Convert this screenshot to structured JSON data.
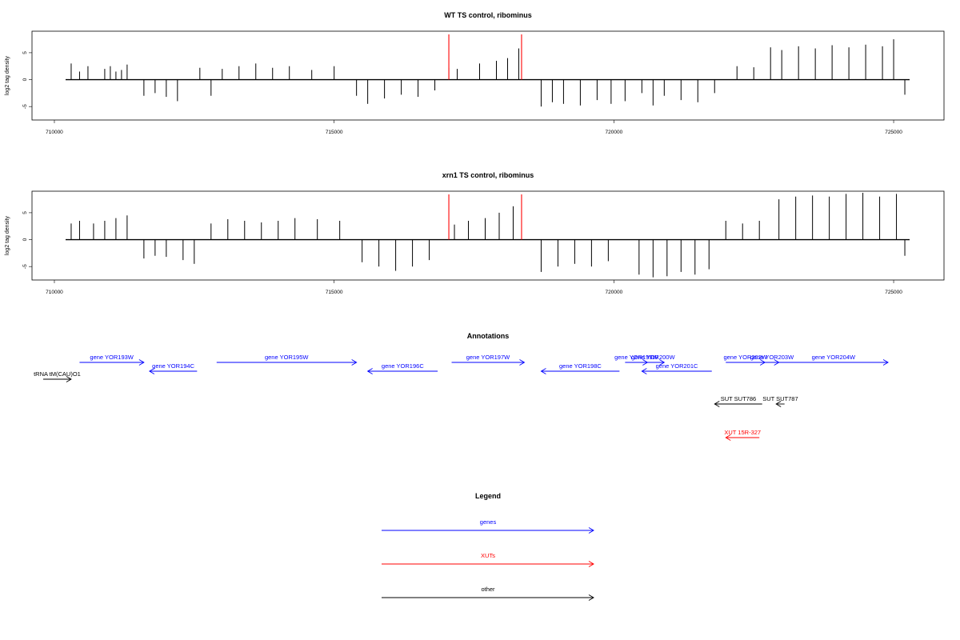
{
  "chart_data": [
    {
      "type": "bar",
      "title": "WT TS control, ribominus",
      "ylabel": "log2 tag density",
      "xlabel": "",
      "xlim": [
        709600,
        725900
      ],
      "ylim": [
        -7.5,
        9
      ],
      "xticks": [
        710000,
        715000,
        720000,
        725000
      ],
      "yticks": [
        -5,
        0,
        5
      ],
      "series": [
        {
          "values": [
            [
              710300,
              3
            ],
            [
              710450,
              1.5
            ],
            [
              710600,
              2.5
            ],
            [
              710900,
              2
            ],
            [
              711000,
              2.5
            ],
            [
              711100,
              1.5
            ],
            [
              711200,
              1.8
            ],
            [
              711300,
              2.8
            ],
            [
              711600,
              -3
            ],
            [
              711800,
              -2.5
            ],
            [
              712000,
              -3.2
            ],
            [
              712200,
              -4
            ],
            [
              712600,
              2.2
            ],
            [
              712800,
              -3
            ],
            [
              713000,
              2
            ],
            [
              713300,
              2.5
            ],
            [
              713600,
              3
            ],
            [
              713900,
              2.2
            ],
            [
              714200,
              2.5
            ],
            [
              714600,
              1.8
            ],
            [
              715000,
              2.5
            ],
            [
              715400,
              -3
            ],
            [
              715600,
              -4.5
            ],
            [
              715900,
              -3.5
            ],
            [
              716200,
              -2.8
            ],
            [
              716500,
              -3.2
            ],
            [
              716800,
              -2
            ],
            [
              717050,
              2.2
            ],
            [
              717200,
              2
            ],
            [
              717600,
              3
            ],
            [
              717900,
              3.5
            ],
            [
              718100,
              4
            ],
            [
              718300,
              5.8
            ],
            [
              718700,
              -5
            ],
            [
              718900,
              -4.2
            ],
            [
              719100,
              -4.5
            ],
            [
              719400,
              -4.8
            ],
            [
              719700,
              -3.8
            ],
            [
              719950,
              -4.5
            ],
            [
              720200,
              -4
            ],
            [
              720500,
              -2.5
            ],
            [
              720700,
              -4.8
            ],
            [
              720900,
              -3
            ],
            [
              721200,
              -3.8
            ],
            [
              721500,
              -4.2
            ],
            [
              721800,
              -2.5
            ],
            [
              722200,
              2.5
            ],
            [
              722500,
              2.3
            ],
            [
              722800,
              6
            ],
            [
              723000,
              5.5
            ],
            [
              723300,
              6.2
            ],
            [
              723600,
              5.8
            ],
            [
              723900,
              6.4
            ],
            [
              724200,
              6
            ],
            [
              724500,
              6.5
            ],
            [
              724800,
              6.2
            ],
            [
              725000,
              7.5
            ],
            [
              725200,
              -2.8
            ]
          ]
        }
      ],
      "markers": [
        717050,
        718350
      ],
      "marker_color": "#ff0000",
      "bar_color": "#000000"
    },
    {
      "type": "bar",
      "title": "xrn1 TS control, ribominus",
      "ylabel": "log2 tag density",
      "xlabel": "",
      "xlim": [
        709600,
        725900
      ],
      "ylim": [
        -7.5,
        9
      ],
      "xticks": [
        710000,
        715000,
        720000,
        725000
      ],
      "yticks": [
        -5,
        0,
        5
      ],
      "series": [
        {
          "values": [
            [
              710300,
              3
            ],
            [
              710450,
              3.5
            ],
            [
              710700,
              3
            ],
            [
              710900,
              3.5
            ],
            [
              711100,
              4
            ],
            [
              711300,
              4.5
            ],
            [
              711600,
              -3.5
            ],
            [
              711800,
              -3
            ],
            [
              712000,
              -3.2
            ],
            [
              712300,
              -3.8
            ],
            [
              712500,
              -4.5
            ],
            [
              712800,
              3
            ],
            [
              713100,
              3.8
            ],
            [
              713400,
              3.5
            ],
            [
              713700,
              3.2
            ],
            [
              714000,
              3.5
            ],
            [
              714300,
              4
            ],
            [
              714700,
              3.8
            ],
            [
              715100,
              3.5
            ],
            [
              715500,
              -4.2
            ],
            [
              715800,
              -5
            ],
            [
              716100,
              -5.8
            ],
            [
              716400,
              -5
            ],
            [
              716700,
              -3.8
            ],
            [
              717150,
              2.8
            ],
            [
              717400,
              3.5
            ],
            [
              717700,
              4
            ],
            [
              717950,
              5
            ],
            [
              718200,
              6.2
            ],
            [
              718700,
              -6
            ],
            [
              719000,
              -5
            ],
            [
              719300,
              -4.5
            ],
            [
              719600,
              -5
            ],
            [
              719900,
              -4
            ],
            [
              720450,
              -6.5
            ],
            [
              720700,
              -7
            ],
            [
              720950,
              -6.8
            ],
            [
              721200,
              -6
            ],
            [
              721450,
              -6.5
            ],
            [
              721700,
              -5.5
            ],
            [
              722000,
              3.5
            ],
            [
              722300,
              3
            ],
            [
              722600,
              3.5
            ],
            [
              722950,
              7.5
            ],
            [
              723250,
              8
            ],
            [
              723550,
              8.2
            ],
            [
              723850,
              8
            ],
            [
              724150,
              8.5
            ],
            [
              724450,
              8.7
            ],
            [
              724750,
              8
            ],
            [
              725050,
              8.5
            ],
            [
              725200,
              -3
            ]
          ]
        }
      ],
      "markers": [
        717050,
        718350
      ],
      "marker_color": "#ff0000",
      "bar_color": "#000000"
    }
  ],
  "annotations": {
    "title": "Annotations",
    "features": [
      {
        "label": "gene YOR193W",
        "start": 710450,
        "end": 711600,
        "strand": "+",
        "row": 0,
        "color": "#0000ff"
      },
      {
        "label": "gene YOR194C",
        "start": 711700,
        "end": 712550,
        "strand": "-",
        "row": 1,
        "color": "#0000ff"
      },
      {
        "label": "gene YOR195W",
        "start": 712900,
        "end": 715400,
        "strand": "+",
        "row": 0,
        "color": "#0000ff"
      },
      {
        "label": "gene YOR196C",
        "start": 715600,
        "end": 716850,
        "strand": "-",
        "row": 1,
        "color": "#0000ff"
      },
      {
        "label": "gene YOR197W",
        "start": 717100,
        "end": 718400,
        "strand": "+",
        "row": 0,
        "color": "#0000ff"
      },
      {
        "label": "gene YOR198C",
        "start": 718700,
        "end": 720100,
        "strand": "-",
        "row": 1,
        "color": "#0000ff"
      },
      {
        "label": "gene YOR199W",
        "start": 720200,
        "end": 720600,
        "strand": "+",
        "row": 0,
        "color": "#0000ff"
      },
      {
        "label": "gene YOR200W",
        "start": 720500,
        "end": 720900,
        "strand": "+",
        "row": 0,
        "color": "#0000ff"
      },
      {
        "label": "gene YOR201C",
        "start": 720500,
        "end": 721750,
        "strand": "-",
        "row": 1,
        "color": "#0000ff"
      },
      {
        "label": "gene YOR202W",
        "start": 722000,
        "end": 722700,
        "strand": "+",
        "row": 0,
        "color": "#0000ff"
      },
      {
        "label": "gene YOR203W",
        "start": 722700,
        "end": 722950,
        "strand": "+",
        "row": 0,
        "color": "#0000ff"
      },
      {
        "label": "gene YOR204W",
        "start": 722950,
        "end": 724900,
        "strand": "+",
        "row": 0,
        "color": "#0000ff"
      },
      {
        "label": "tRNA tM(CAU)O1",
        "start": 709800,
        "end": 710300,
        "strand": "+",
        "row": 2,
        "color": "#000000"
      },
      {
        "label": "SUT SUT786",
        "start": 721800,
        "end": 722650,
        "strand": "-",
        "row": 3,
        "color": "#000000"
      },
      {
        "label": "SUT SUT787",
        "start": 722900,
        "end": 723050,
        "strand": "-",
        "row": 3,
        "color": "#000000"
      },
      {
        "label": "XUT 15R-327",
        "start": 722000,
        "end": 722600,
        "strand": "-",
        "row": 4,
        "color": "#ff0000"
      }
    ]
  },
  "legend": {
    "title": "Legend",
    "entries": [
      {
        "label": "genes",
        "color": "#0000ff"
      },
      {
        "label": "XUTs",
        "color": "#ff0000"
      },
      {
        "label": "other",
        "color": "#000000"
      }
    ]
  }
}
